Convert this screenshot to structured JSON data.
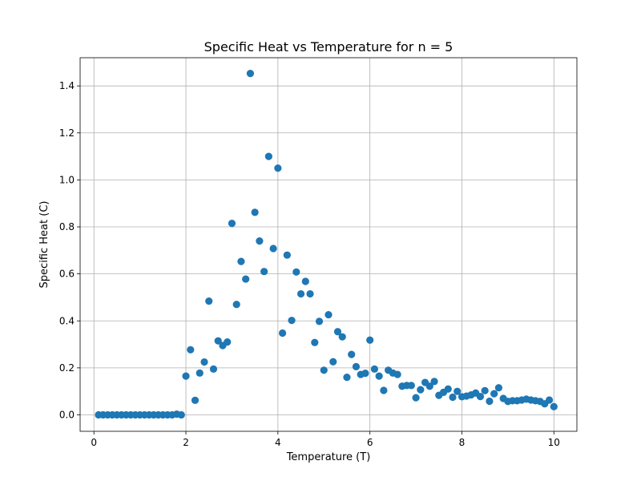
{
  "chart_data": {
    "type": "scatter",
    "title": "Specific Heat vs Temperature for n = 5",
    "xlabel": "Temperature (T)",
    "ylabel": "Specific Heat (C)",
    "xlim": [
      -0.3,
      10.5
    ],
    "ylim": [
      -0.07,
      1.52
    ],
    "x_ticks": [
      0,
      2,
      4,
      6,
      8,
      10
    ],
    "x_tick_labels": [
      "0",
      "2",
      "4",
      "6",
      "8",
      "10"
    ],
    "y_ticks": [
      0.0,
      0.2,
      0.4,
      0.6,
      0.8,
      1.0,
      1.2,
      1.4
    ],
    "y_tick_labels": [
      "0.0",
      "0.2",
      "0.4",
      "0.6",
      "0.8",
      "1.0",
      "1.2",
      "1.4"
    ],
    "grid": true,
    "marker_color": "#1f77b4",
    "series": [
      {
        "points": [
          [
            0.1,
            0.0
          ],
          [
            0.2,
            0.0
          ],
          [
            0.3,
            0.0
          ],
          [
            0.4,
            0.0
          ],
          [
            0.5,
            0.0
          ],
          [
            0.6,
            0.0
          ],
          [
            0.7,
            0.0
          ],
          [
            0.8,
            0.0
          ],
          [
            0.9,
            0.0
          ],
          [
            1.0,
            0.0
          ],
          [
            1.1,
            0.0
          ],
          [
            1.2,
            0.0
          ],
          [
            1.3,
            0.0
          ],
          [
            1.4,
            0.0
          ],
          [
            1.5,
            0.0
          ],
          [
            1.6,
            0.0
          ],
          [
            1.7,
            0.0
          ],
          [
            1.8,
            0.003
          ],
          [
            1.9,
            0.0
          ],
          [
            2.0,
            0.165
          ],
          [
            2.1,
            0.277
          ],
          [
            2.2,
            0.062
          ],
          [
            2.3,
            0.178
          ],
          [
            2.4,
            0.225
          ],
          [
            2.5,
            0.484
          ],
          [
            2.6,
            0.195
          ],
          [
            2.7,
            0.315
          ],
          [
            2.8,
            0.295
          ],
          [
            2.9,
            0.31
          ],
          [
            3.0,
            0.815
          ],
          [
            3.1,
            0.47
          ],
          [
            3.2,
            0.653
          ],
          [
            3.3,
            0.578
          ],
          [
            3.4,
            1.453
          ],
          [
            3.5,
            0.862
          ],
          [
            3.6,
            0.74
          ],
          [
            3.7,
            0.61
          ],
          [
            3.8,
            1.1
          ],
          [
            3.9,
            0.708
          ],
          [
            4.0,
            1.05
          ],
          [
            4.1,
            0.348
          ],
          [
            4.2,
            0.68
          ],
          [
            4.3,
            0.402
          ],
          [
            4.4,
            0.608
          ],
          [
            4.5,
            0.515
          ],
          [
            4.6,
            0.568
          ],
          [
            4.7,
            0.515
          ],
          [
            4.8,
            0.308
          ],
          [
            4.9,
            0.398
          ],
          [
            5.0,
            0.19
          ],
          [
            5.1,
            0.426
          ],
          [
            5.2,
            0.226
          ],
          [
            5.3,
            0.354
          ],
          [
            5.4,
            0.332
          ],
          [
            5.5,
            0.16
          ],
          [
            5.6,
            0.257
          ],
          [
            5.7,
            0.205
          ],
          [
            5.8,
            0.172
          ],
          [
            5.9,
            0.177
          ],
          [
            6.0,
            0.318
          ],
          [
            6.1,
            0.195
          ],
          [
            6.2,
            0.165
          ],
          [
            6.3,
            0.104
          ],
          [
            6.4,
            0.19
          ],
          [
            6.5,
            0.178
          ],
          [
            6.6,
            0.172
          ],
          [
            6.7,
            0.122
          ],
          [
            6.8,
            0.125
          ],
          [
            6.9,
            0.125
          ],
          [
            7.0,
            0.073
          ],
          [
            7.1,
            0.107
          ],
          [
            7.2,
            0.138
          ],
          [
            7.3,
            0.122
          ],
          [
            7.4,
            0.142
          ],
          [
            7.5,
            0.083
          ],
          [
            7.6,
            0.096
          ],
          [
            7.7,
            0.11
          ],
          [
            7.8,
            0.075
          ],
          [
            7.9,
            0.1
          ],
          [
            8.0,
            0.077
          ],
          [
            8.1,
            0.08
          ],
          [
            8.2,
            0.085
          ],
          [
            8.3,
            0.093
          ],
          [
            8.4,
            0.078
          ],
          [
            8.5,
            0.103
          ],
          [
            8.6,
            0.058
          ],
          [
            8.7,
            0.09
          ],
          [
            8.8,
            0.115
          ],
          [
            8.9,
            0.07
          ],
          [
            9.0,
            0.057
          ],
          [
            9.1,
            0.06
          ],
          [
            9.2,
            0.06
          ],
          [
            9.3,
            0.063
          ],
          [
            9.4,
            0.067
          ],
          [
            9.5,
            0.063
          ],
          [
            9.6,
            0.06
          ],
          [
            9.7,
            0.057
          ],
          [
            9.8,
            0.047
          ],
          [
            9.9,
            0.063
          ],
          [
            10.0,
            0.035
          ]
        ]
      }
    ]
  }
}
